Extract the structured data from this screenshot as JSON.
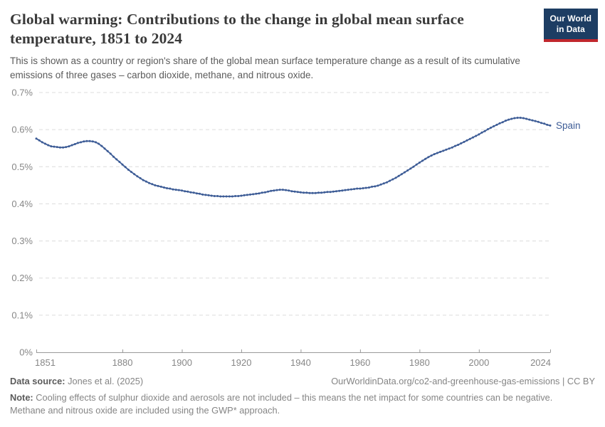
{
  "header": {
    "title": "Global warming: Contributions to the change in global mean surface temperature, 1851 to 2024",
    "subtitle": "This is shown as a country or region's share of the global mean surface temperature change as a result of its cumulative emissions of three gases – carbon dioxide, methane, and nitrous oxide."
  },
  "logo": {
    "line1": "Our World",
    "line2": "in Data"
  },
  "colors": {
    "line": "#3d5c96",
    "gridline": "#dcdcdc",
    "axis": "#9a9a9a",
    "tick_label": "#878787",
    "logo_bg": "#1d3d63",
    "logo_stripe": "#c0272d"
  },
  "chart_data": {
    "type": "line",
    "title": "Global warming: Contributions to the change in global mean surface temperature, 1851 to 2024",
    "xlabel": "",
    "ylabel": "Share of global mean surface temperature change",
    "x_range": [
      1851,
      2024
    ],
    "x_step": 1,
    "ylim": [
      0,
      0.7
    ],
    "grid": "horizontal-dashed",
    "legend_position": "line-end-label",
    "yticks": [
      {
        "value": 0.0,
        "label": "0%"
      },
      {
        "value": 0.1,
        "label": "0.1%"
      },
      {
        "value": 0.2,
        "label": "0.2%"
      },
      {
        "value": 0.3,
        "label": "0.3%"
      },
      {
        "value": 0.4,
        "label": "0.4%"
      },
      {
        "value": 0.5,
        "label": "0.5%"
      },
      {
        "value": 0.6,
        "label": "0.6%"
      },
      {
        "value": 0.7,
        "label": "0.7%"
      }
    ],
    "xticks": [
      {
        "value": 1851,
        "label": "1851"
      },
      {
        "value": 1880,
        "label": "1880"
      },
      {
        "value": 1900,
        "label": "1900"
      },
      {
        "value": 1920,
        "label": "1920"
      },
      {
        "value": 1940,
        "label": "1940"
      },
      {
        "value": 1960,
        "label": "1960"
      },
      {
        "value": 1980,
        "label": "1980"
      },
      {
        "value": 2000,
        "label": "2000"
      },
      {
        "value": 2024,
        "label": "2024"
      }
    ],
    "series": [
      {
        "name": "Spain",
        "unit": "%",
        "values": [
          0.576,
          0.571,
          0.566,
          0.562,
          0.558,
          0.555,
          0.554,
          0.553,
          0.552,
          0.552,
          0.553,
          0.555,
          0.558,
          0.561,
          0.564,
          0.566,
          0.568,
          0.569,
          0.569,
          0.568,
          0.566,
          0.562,
          0.556,
          0.549,
          0.542,
          0.535,
          0.527,
          0.52,
          0.513,
          0.506,
          0.499,
          0.492,
          0.486,
          0.48,
          0.474,
          0.469,
          0.464,
          0.46,
          0.456,
          0.453,
          0.45,
          0.448,
          0.446,
          0.444,
          0.442,
          0.441,
          0.439,
          0.438,
          0.437,
          0.436,
          0.434,
          0.433,
          0.431,
          0.43,
          0.428,
          0.427,
          0.425,
          0.424,
          0.423,
          0.422,
          0.421,
          0.421,
          0.42,
          0.42,
          0.42,
          0.42,
          0.42,
          0.421,
          0.421,
          0.422,
          0.423,
          0.424,
          0.425,
          0.426,
          0.427,
          0.428,
          0.43,
          0.431,
          0.433,
          0.435,
          0.436,
          0.437,
          0.438,
          0.438,
          0.437,
          0.436,
          0.434,
          0.433,
          0.432,
          0.431,
          0.43,
          0.43,
          0.429,
          0.429,
          0.429,
          0.43,
          0.43,
          0.431,
          0.432,
          0.432,
          0.433,
          0.434,
          0.435,
          0.436,
          0.437,
          0.438,
          0.439,
          0.44,
          0.441,
          0.441,
          0.442,
          0.443,
          0.444,
          0.446,
          0.447,
          0.449,
          0.452,
          0.455,
          0.458,
          0.462,
          0.466,
          0.47,
          0.475,
          0.48,
          0.485,
          0.49,
          0.495,
          0.5,
          0.506,
          0.511,
          0.516,
          0.521,
          0.526,
          0.53,
          0.534,
          0.537,
          0.54,
          0.543,
          0.546,
          0.549,
          0.552,
          0.556,
          0.559,
          0.563,
          0.567,
          0.571,
          0.575,
          0.579,
          0.583,
          0.587,
          0.592,
          0.596,
          0.601,
          0.605,
          0.609,
          0.613,
          0.617,
          0.62,
          0.624,
          0.627,
          0.629,
          0.631,
          0.632,
          0.632,
          0.631,
          0.629,
          0.627,
          0.625,
          0.623,
          0.621,
          0.618,
          0.616,
          0.613,
          0.611
        ]
      }
    ]
  },
  "footer": {
    "data_source_label": "Data source:",
    "data_source_value": " Jones et al. (2025)",
    "attribution": "OurWorldinData.org/co2-and-greenhouse-gas-emissions | CC BY",
    "note_label": "Note:",
    "note_text": " Cooling effects of sulphur dioxide and aerosols are not included – this means the net impact for some countries can be negative. Methane and nitrous oxide are included using the GWP* approach."
  }
}
